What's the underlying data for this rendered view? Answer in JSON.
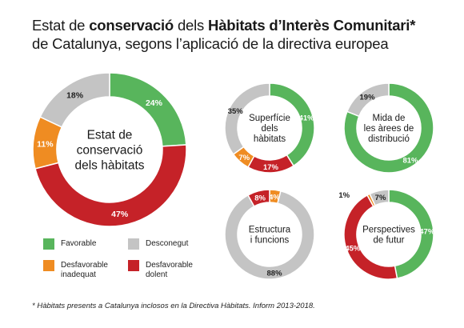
{
  "title": {
    "part1": "Estat de ",
    "bold1": "conservació",
    "part2": " dels ",
    "bold2": "Hàbitats d’Interès Comunitari*",
    "line2": "de Catalunya, segons l’aplicació de la directiva europea"
  },
  "colors": {
    "favorable": "#58b55c",
    "desconegut": "#c4c4c4",
    "inadequat": "#ef8c22",
    "dolent": "#c52228"
  },
  "legend": {
    "favorable": "Favorable",
    "desconegut": "Desconegut",
    "inadequat_1": "Desfavorable",
    "inadequat_2": "inadequat",
    "dolent_1": "Desfavorable",
    "dolent_2": "dolent"
  },
  "chart_data": [
    {
      "type": "pie",
      "title": [
        "Estat de",
        "conservació",
        "dels hàbitats"
      ],
      "slices": [
        {
          "category": "favorable",
          "value": 24,
          "label": "24%"
        },
        {
          "category": "dolent",
          "value": 47,
          "label": "47%"
        },
        {
          "category": "inadequat",
          "value": 11,
          "label": "11%"
        },
        {
          "category": "desconegut",
          "value": 18,
          "label": "18%"
        }
      ]
    },
    {
      "type": "pie",
      "title": [
        "Superfície",
        "dels",
        "hàbitats"
      ],
      "slices": [
        {
          "category": "favorable",
          "value": 41,
          "label": "41%"
        },
        {
          "category": "dolent",
          "value": 17,
          "label": "17%"
        },
        {
          "category": "inadequat",
          "value": 7,
          "label": "7%"
        },
        {
          "category": "desconegut",
          "value": 35,
          "label": "35%"
        }
      ]
    },
    {
      "type": "pie",
      "title": [
        "Mida de",
        "les àrees de",
        "distribució"
      ],
      "slices": [
        {
          "category": "favorable",
          "value": 81,
          "label": "81%"
        },
        {
          "category": "desconegut",
          "value": 19,
          "label": "19%"
        }
      ]
    },
    {
      "type": "pie",
      "title": [
        "Estructura",
        "i funcions"
      ],
      "slices": [
        {
          "category": "inadequat",
          "value": 4,
          "label": "4%"
        },
        {
          "category": "desconegut",
          "value": 88,
          "label": "88%"
        },
        {
          "category": "dolent",
          "value": 8,
          "label": "8%"
        }
      ]
    },
    {
      "type": "pie",
      "title": [
        "Perspectives",
        "de futur"
      ],
      "slices": [
        {
          "category": "favorable",
          "value": 47,
          "label": "47%"
        },
        {
          "category": "dolent",
          "value": 45,
          "label": "45%"
        },
        {
          "category": "inadequat",
          "value": 1,
          "label": "1%"
        },
        {
          "category": "desconegut",
          "value": 7,
          "label": "7%"
        }
      ]
    }
  ],
  "footnote": "* Hàbitats presents a Catalunya inclosos en la Directiva Hàbitats. Inform 2013-2018."
}
